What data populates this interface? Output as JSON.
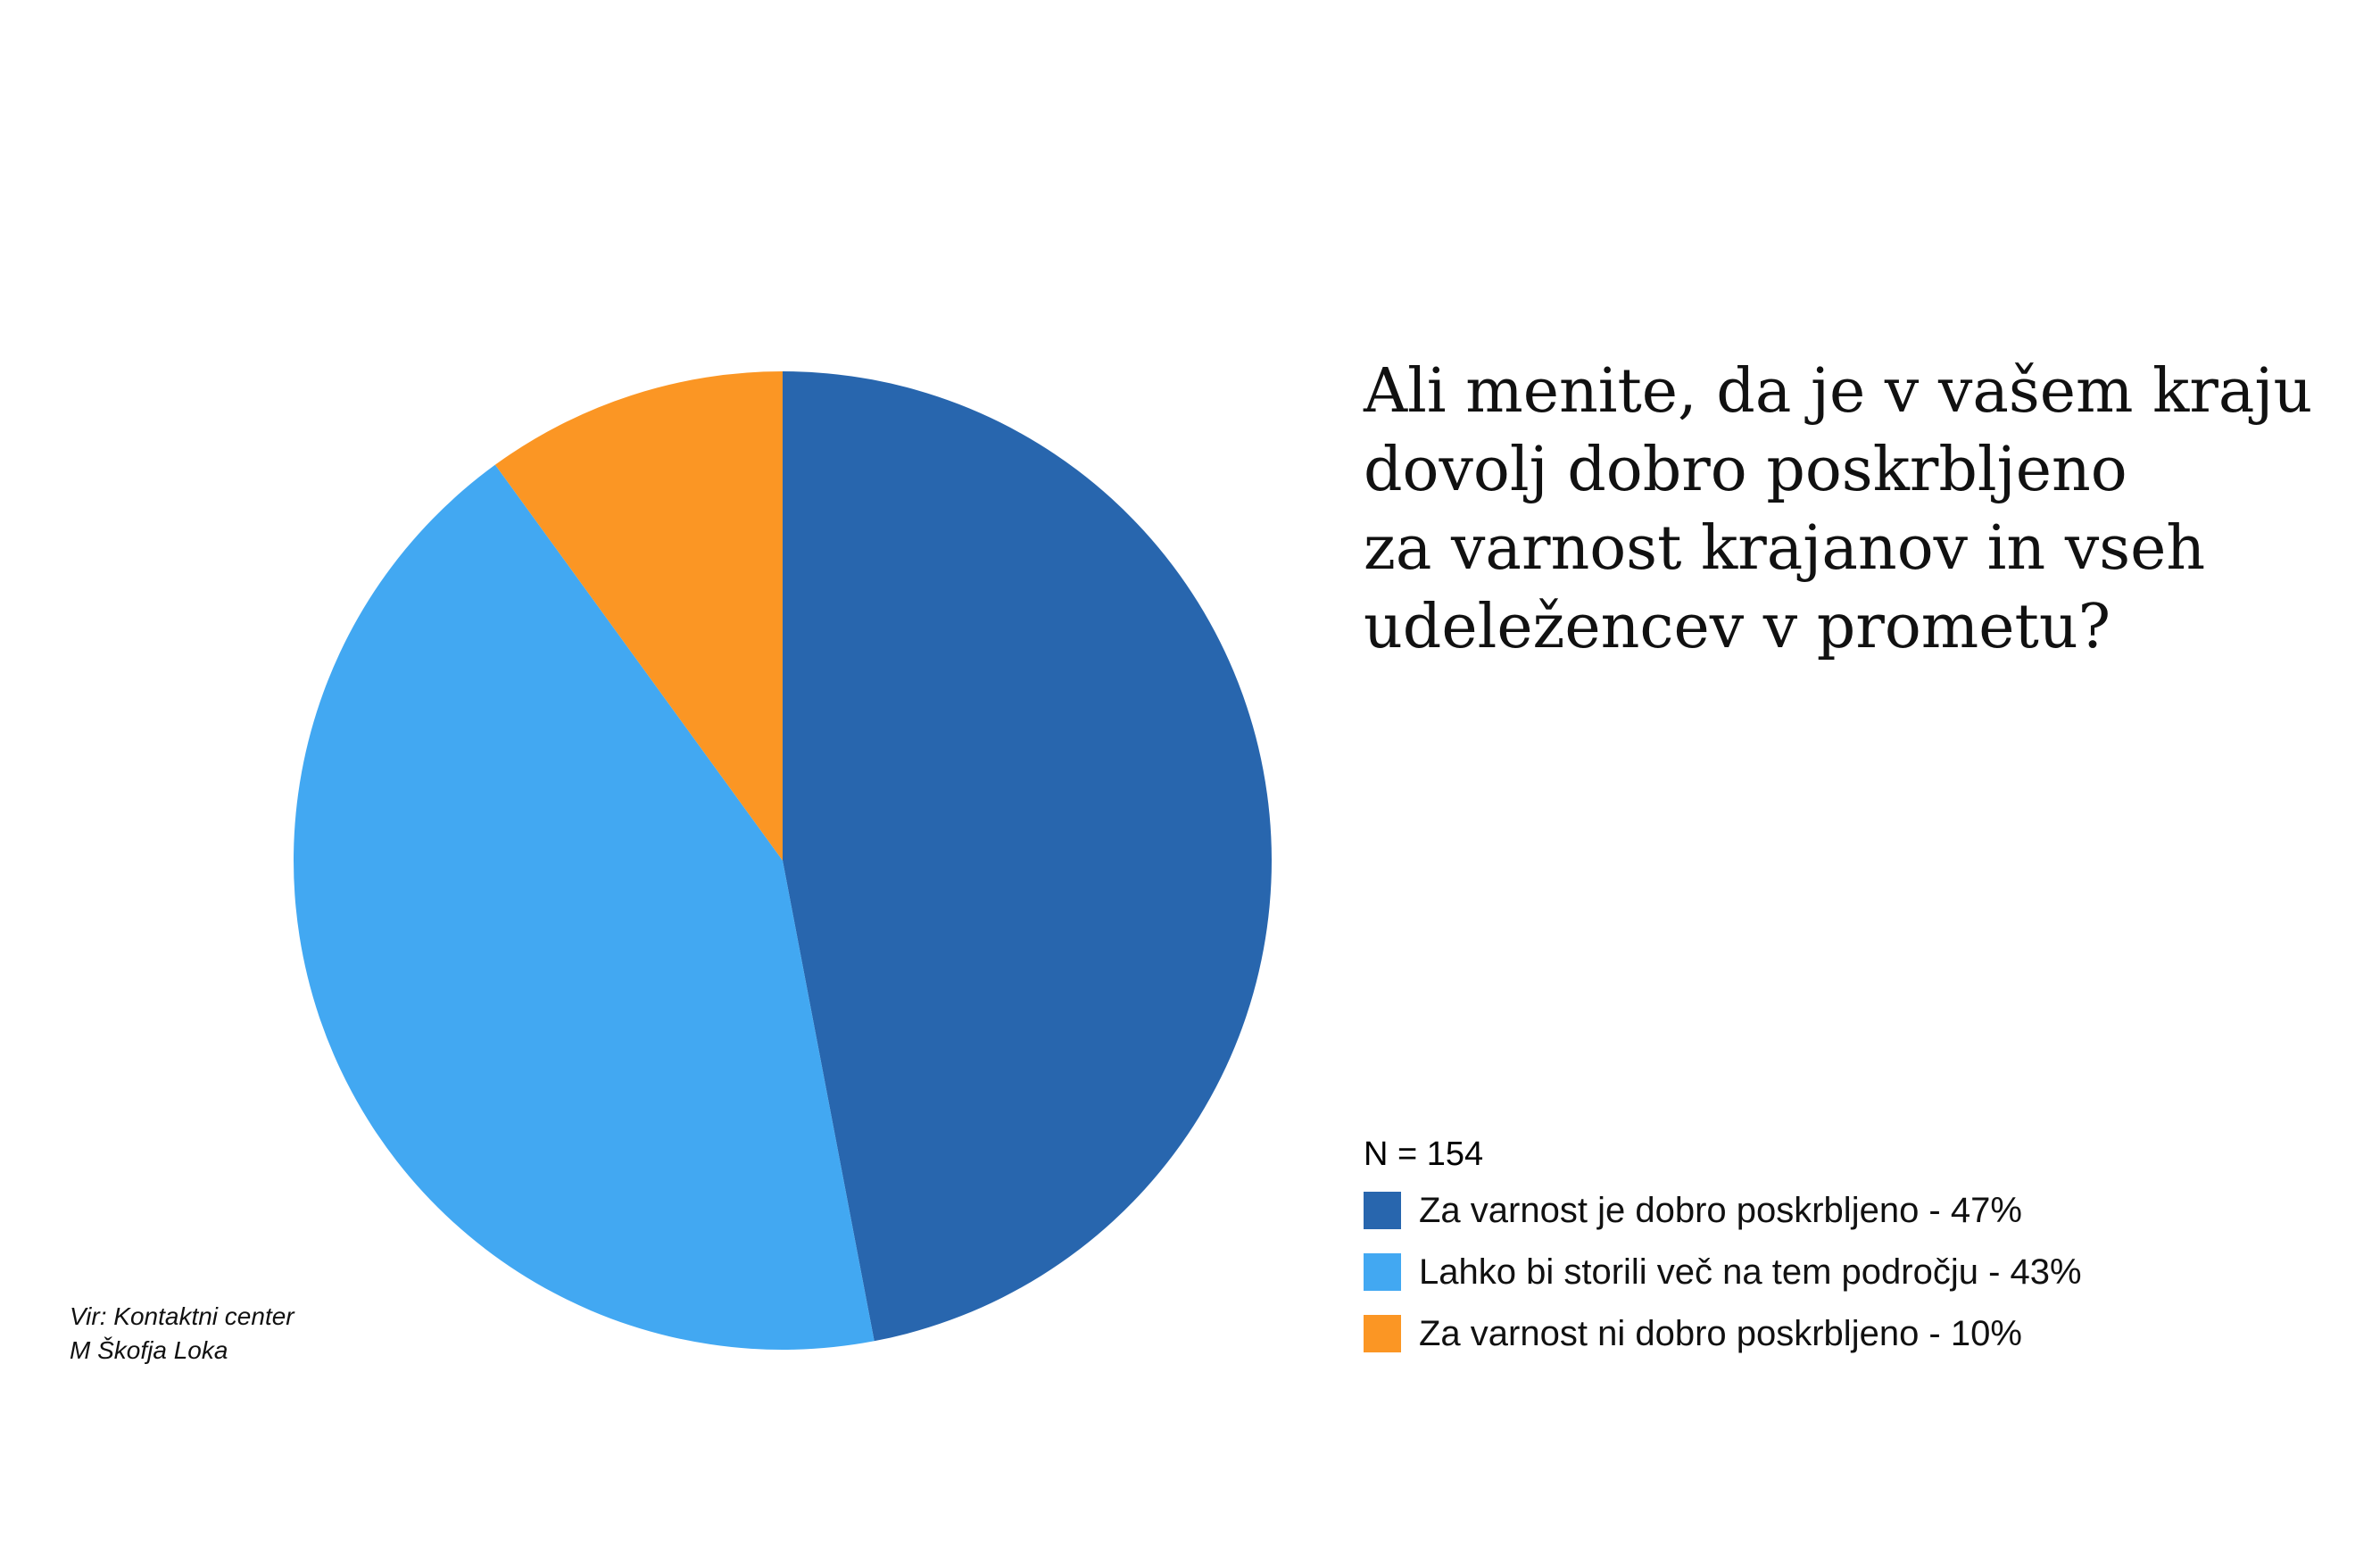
{
  "chart_data": {
    "type": "pie",
    "title": [
      "Ali menite, da je v vašem kraju",
      "dovolj dobro poskrbljeno",
      "za varnost krajanov in vseh",
      "udeležencev v prometu?"
    ],
    "sample_size": "N = 154",
    "slices": [
      {
        "label": "Za varnost je dobro poskrbljeno - 47%",
        "value": 47,
        "color": "#2866ae"
      },
      {
        "label": "Lahko bi storili več na tem področju - 43%",
        "value": 43,
        "color": "#42a8f2"
      },
      {
        "label": "Za varnost ni dobro poskrbljeno - 10%",
        "value": 10,
        "color": "#fb9624"
      }
    ],
    "legend_position": "bottom-right"
  },
  "source": [
    "Vir: Kontaktni center",
    "M Škofja Loka"
  ]
}
